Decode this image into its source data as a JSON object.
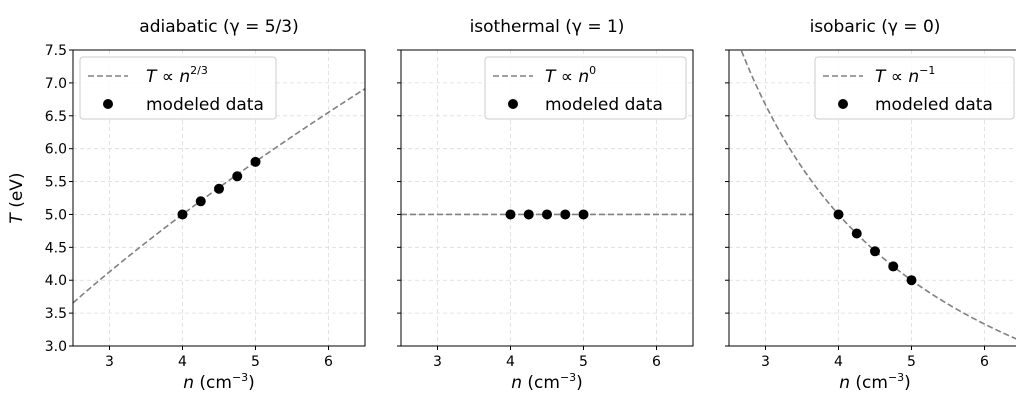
{
  "chart_data": [
    {
      "type": "scatter",
      "title": "adiabatic (γ = 5/3)",
      "xlabel": "n (cm⁻³)",
      "ylabel": "T (eV)",
      "xlim": [
        2.5,
        6.5
      ],
      "ylim": [
        3.0,
        7.5
      ],
      "xticks": [
        "3",
        "4",
        "5",
        "6"
      ],
      "yticks": [
        "3.0",
        "3.5",
        "4.0",
        "4.5",
        "5.0",
        "5.5",
        "6.0",
        "6.5",
        "7.0",
        "7.5"
      ],
      "grid": true,
      "legend_position": "top-left",
      "series": [
        {
          "name": "T ∝ n^{2/3}",
          "style": "dashed-line",
          "color": "#808080",
          "gamma": 1.6667
        },
        {
          "name": "modeled data",
          "style": "markers",
          "color": "#000000",
          "x": [
            4.0,
            4.25,
            4.5,
            4.75,
            5.0
          ],
          "y": [
            5.0,
            5.2,
            5.39,
            5.58,
            5.8
          ]
        }
      ]
    },
    {
      "type": "scatter",
      "title": "isothermal (γ = 1)",
      "xlabel": "n (cm⁻³)",
      "xlim": [
        2.5,
        6.5
      ],
      "ylim": [
        3.0,
        7.5
      ],
      "xticks": [
        "3",
        "4",
        "5",
        "6"
      ],
      "grid": true,
      "legend_position": "top-right",
      "series": [
        {
          "name": "T ∝ n^{0}",
          "style": "dashed-line",
          "color": "#808080",
          "gamma": 1
        },
        {
          "name": "modeled data",
          "style": "markers",
          "color": "#000000",
          "x": [
            4.0,
            4.25,
            4.5,
            4.75,
            5.0
          ],
          "y": [
            5.0,
            5.0,
            5.0,
            5.0,
            5.0
          ]
        }
      ]
    },
    {
      "type": "scatter",
      "title": "isobaric (γ = 0)",
      "xlabel": "n (cm⁻³)",
      "xlim": [
        2.5,
        6.5
      ],
      "ylim": [
        3.0,
        7.5
      ],
      "xticks": [
        "3",
        "4",
        "5",
        "6"
      ],
      "grid": true,
      "legend_position": "top-right",
      "series": [
        {
          "name": "T ∝ n^{−1}",
          "style": "dashed-line",
          "color": "#808080",
          "gamma": 0
        },
        {
          "name": "modeled data",
          "style": "markers",
          "color": "#000000",
          "x": [
            4.0,
            4.25,
            4.5,
            4.75,
            5.0
          ],
          "y": [
            5.0,
            4.71,
            4.44,
            4.21,
            4.0
          ]
        }
      ]
    }
  ],
  "reference": {
    "n0": 4.0,
    "T0": 5.0
  },
  "legend": {
    "data_label": "modeled data",
    "line_labels": [
      {
        "base": "T ∝ n",
        "exp": "2/3"
      },
      {
        "base": "T ∝ n",
        "exp": "0"
      },
      {
        "base": "T ∝ n",
        "exp": "−1"
      }
    ]
  },
  "axes_text": {
    "xlabel_base": "n",
    "xlabel_unit": " (cm",
    "xlabel_exp": "−3",
    "xlabel_close": ")",
    "ylabel_base": "T",
    "ylabel_unit": " (eV)"
  },
  "colors": {
    "line": "#808080",
    "marker": "#000000",
    "grid": "#dcdcdc",
    "frame": "#000000"
  }
}
